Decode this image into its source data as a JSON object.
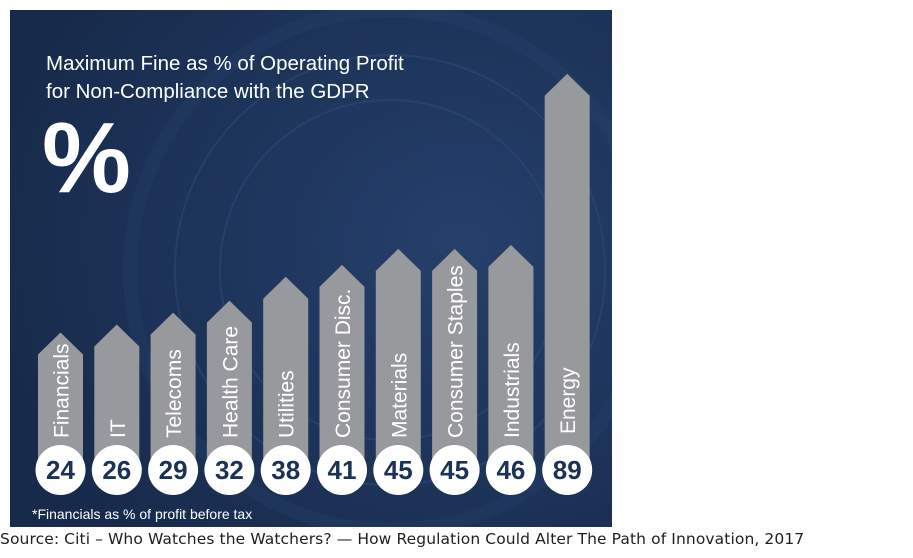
{
  "chart_data": {
    "type": "bar",
    "title_lines": [
      "Maximum Fine as % of Operating Profit",
      "for Non-Compliance with the GDPR"
    ],
    "unit_symbol": "%",
    "categories": [
      "Financials",
      "IT",
      "Telecoms",
      "Health Care",
      "Utilities",
      "Consumer Disc.",
      "Materials",
      "Consumer Staples",
      "Industrials",
      "Energy"
    ],
    "values": [
      24,
      26,
      29,
      32,
      38,
      41,
      45,
      45,
      46,
      89
    ],
    "value_labels": [
      "24",
      "26",
      "29",
      "32",
      "38",
      "41",
      "45",
      "45",
      "46",
      "89"
    ],
    "footnote": "*Financials as % of profit before tax",
    "colors": {
      "background": "#1b3156",
      "bar": "#98999d",
      "bar_text": "#ffffff",
      "badge_fill": "#ffffff",
      "badge_text": "#1b3156",
      "title_text": "#ffffff"
    }
  },
  "source": "Source: Citi – Who Watches the Watchers? — How Regulation Could Alter The Path of Innovation, 2017"
}
